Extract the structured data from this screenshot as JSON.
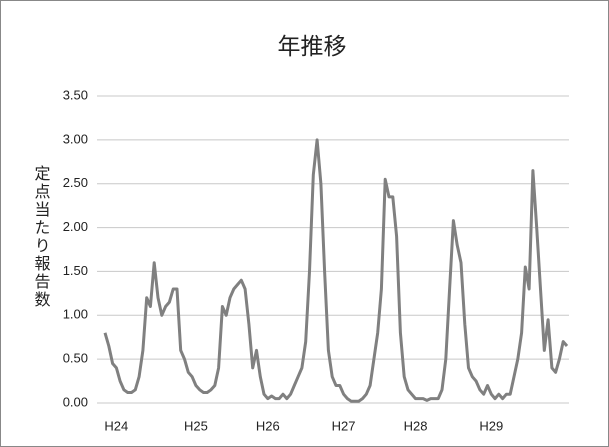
{
  "chart_data": {
    "type": "line",
    "title": "年推移",
    "y_label": "定点当たり報告数",
    "categories": [
      null,
      null,
      null,
      "H24",
      null,
      null,
      null,
      null,
      null,
      null,
      null,
      null,
      null,
      null,
      null,
      null,
      null,
      null,
      null,
      null,
      null,
      null,
      null,
      null,
      "H25",
      null,
      null,
      null,
      null,
      null,
      null,
      null,
      null,
      null,
      null,
      null,
      null,
      null,
      null,
      null,
      null,
      null,
      null,
      "H26",
      null,
      null,
      null,
      null,
      null,
      null,
      null,
      null,
      null,
      null,
      null,
      null,
      null,
      null,
      null,
      null,
      null,
      null,
      null,
      "H27",
      null,
      null,
      null,
      null,
      null,
      null,
      null,
      null,
      null,
      null,
      null,
      null,
      null,
      null,
      null,
      null,
      null,
      null,
      "H28",
      null,
      null,
      null,
      null,
      null,
      null,
      null,
      null,
      null,
      null,
      null,
      null,
      null,
      null,
      null,
      null,
      null,
      null,
      null,
      "H29",
      null,
      null,
      null,
      null,
      null,
      null,
      null,
      null,
      null,
      null,
      null,
      null,
      null,
      null,
      null,
      null,
      null,
      null,
      null,
      null
    ],
    "series": [
      {
        "name": "定点当たり報告数",
        "color": "#808080",
        "values": [
          0.8,
          0.65,
          0.45,
          0.4,
          0.25,
          0.15,
          0.12,
          0.12,
          0.15,
          0.3,
          0.6,
          1.2,
          1.1,
          1.6,
          1.2,
          1.0,
          1.1,
          1.15,
          1.3,
          1.3,
          0.6,
          0.5,
          0.35,
          0.3,
          0.2,
          0.15,
          0.12,
          0.12,
          0.15,
          0.2,
          0.4,
          1.1,
          1.0,
          1.2,
          1.3,
          1.35,
          1.4,
          1.3,
          0.9,
          0.4,
          0.6,
          0.3,
          0.1,
          0.05,
          0.08,
          0.05,
          0.05,
          0.1,
          0.05,
          0.1,
          0.2,
          0.3,
          0.4,
          0.7,
          1.5,
          2.6,
          3.0,
          2.5,
          1.5,
          0.6,
          0.3,
          0.2,
          0.2,
          0.1,
          0.05,
          0.02,
          0.02,
          0.02,
          0.05,
          0.1,
          0.2,
          0.5,
          0.8,
          1.3,
          2.55,
          2.35,
          2.35,
          1.9,
          0.8,
          0.3,
          0.15,
          0.1,
          0.05,
          0.05,
          0.05,
          0.03,
          0.05,
          0.05,
          0.05,
          0.15,
          0.5,
          1.3,
          2.08,
          1.8,
          1.6,
          0.9,
          0.4,
          0.3,
          0.25,
          0.15,
          0.1,
          0.2,
          0.1,
          0.05,
          0.1,
          0.05,
          0.1,
          0.1,
          0.3,
          0.5,
          0.8,
          1.55,
          1.3,
          2.65,
          2.0,
          1.3,
          0.6,
          0.95,
          0.4,
          0.35,
          0.5,
          0.7,
          0.65
        ]
      }
    ],
    "ylim": [
      0,
      3.5
    ],
    "yticks": [
      {
        "value": 0,
        "label": "0.00"
      },
      {
        "value": 0.5,
        "label": "0.50"
      },
      {
        "value": 1,
        "label": "1.00"
      },
      {
        "value": 1.5,
        "label": "1.50"
      },
      {
        "value": 2,
        "label": "2.00"
      },
      {
        "value": 2.5,
        "label": "2.50"
      },
      {
        "value": 3,
        "label": "3.00"
      },
      {
        "value": 3.5,
        "label": "3.50"
      }
    ],
    "grid": true
  }
}
